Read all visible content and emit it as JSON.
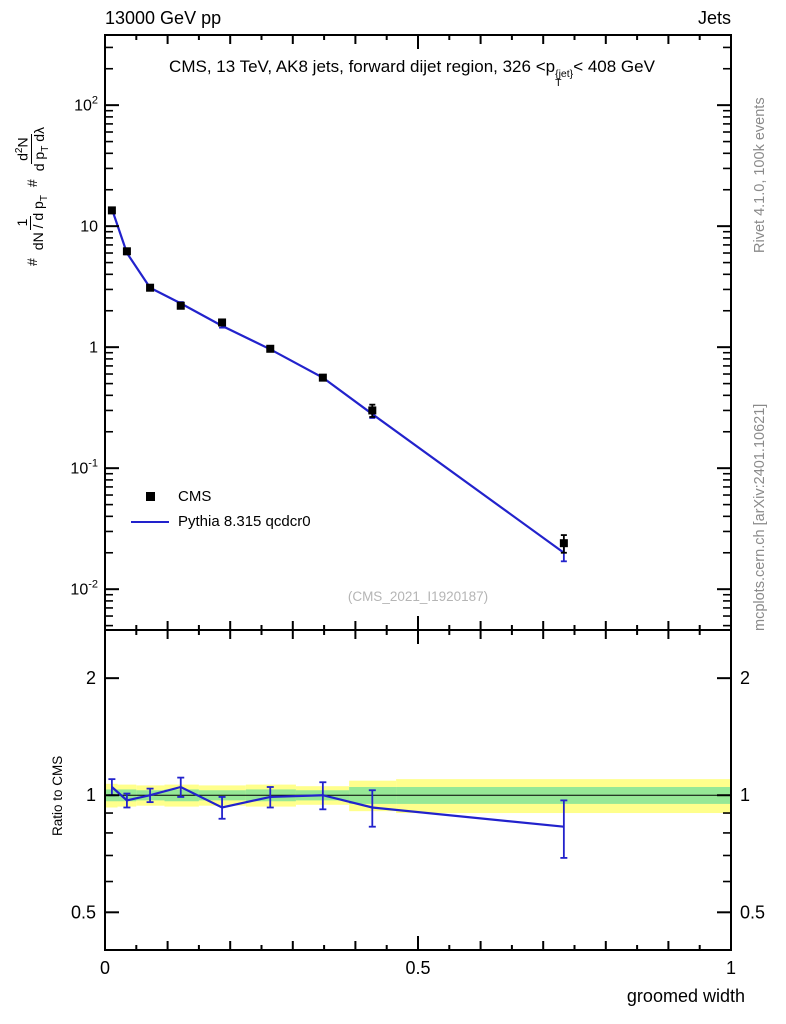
{
  "header": {
    "left": "13000 GeV pp",
    "right": "Jets"
  },
  "title": {
    "pre": "CMS, 13 TeV, AK8 jets, forward dijet region, 326 <p",
    "sup": "{jet}",
    "sub": "T",
    "post": "< 408 GeV"
  },
  "watermark": "(CMS_2021_I1920187)",
  "side_notes": {
    "rivet": "Rivet 4.1.0, 100k events",
    "mcplots": "mcplots.cern.ch [arXiv:2401.10621]"
  },
  "legend": [
    {
      "label": "CMS",
      "marker": "black-square"
    },
    {
      "label": "Pythia 8.315 qcdcr0",
      "marker": "blue-line"
    }
  ],
  "ylabel_parts": {
    "hash1": "#",
    "f1num": "1",
    "f1den_pre": "dN / d p",
    "f1den_sub": "T",
    "hash2": "#",
    "f2num_pre": "d",
    "f2num_sup": "2",
    "f2num_post": "N",
    "f2den_pre": "d p",
    "f2den_sub": "T",
    "f2den_post": " dλ"
  },
  "axes": {
    "y_ratio_label": "Ratio to CMS"
  },
  "chart_data": {
    "type": "line",
    "title": "CMS, 13 TeV, AK8 jets, forward dijet region, 326 < pT{jet} < 408 GeV",
    "xlabel": "groomed width",
    "ylabel": "# 1/(dN/dpT) d2N/(dpT dlambda)",
    "ratio_label": "Ratio to CMS",
    "legend_position": "middle-left",
    "grid": false,
    "xlim": [
      0,
      1
    ],
    "ylim_main": [
      0.0046,
      380
    ],
    "ylim_ratio": [
      0.4,
      2.66
    ],
    "x_scale": "linear",
    "y_scale_main": "log",
    "y_scale_ratio": "log",
    "x": [
      0.011,
      0.035,
      0.072,
      0.121,
      0.187,
      0.264,
      0.348,
      0.427,
      0.733
    ],
    "series": [
      {
        "name": "CMS",
        "type": "marker",
        "color": "#000000",
        "values": [
          13.5,
          6.2,
          3.1,
          2.2,
          1.6,
          0.97,
          0.56,
          0.3,
          0.024
        ],
        "errors": [
          0.5,
          0.25,
          0.12,
          0.08,
          0.07,
          0.04,
          0.025,
          0.035,
          0.004
        ]
      },
      {
        "name": "Pythia 8.315 qcdcr0",
        "type": "line",
        "color": "#2222cc",
        "values": [
          13.9,
          6.0,
          3.1,
          2.3,
          1.5,
          0.96,
          0.56,
          0.28,
          0.02
        ],
        "errors": [
          0.3,
          0.15,
          0.08,
          0.06,
          0.05,
          0.03,
          0.02,
          0.02,
          0.003
        ]
      }
    ],
    "ratio": {
      "values": [
        1.05,
        0.97,
        1.0,
        1.05,
        0.93,
        0.99,
        1.0,
        0.93,
        0.83
      ],
      "errors": [
        0.05,
        0.04,
        0.04,
        0.06,
        0.06,
        0.06,
        0.08,
        0.1,
        0.14
      ]
    },
    "bands": [
      {
        "x0": 0.0,
        "x1": 0.02,
        "outer_lo": 0.93,
        "outer_hi": 1.07,
        "inner_lo": 0.965,
        "inner_hi": 1.035
      },
      {
        "x0": 0.02,
        "x1": 0.05,
        "outer_lo": 0.935,
        "outer_hi": 1.065,
        "inner_lo": 0.965,
        "inner_hi": 1.035
      },
      {
        "x0": 0.05,
        "x1": 0.095,
        "outer_lo": 0.94,
        "outer_hi": 1.06,
        "inner_lo": 0.97,
        "inner_hi": 1.03
      },
      {
        "x0": 0.095,
        "x1": 0.15,
        "outer_lo": 0.935,
        "outer_hi": 1.065,
        "inner_lo": 0.965,
        "inner_hi": 1.035
      },
      {
        "x0": 0.15,
        "x1": 0.225,
        "outer_lo": 0.94,
        "outer_hi": 1.06,
        "inner_lo": 0.97,
        "inner_hi": 1.03
      },
      {
        "x0": 0.225,
        "x1": 0.305,
        "outer_lo": 0.935,
        "outer_hi": 1.065,
        "inner_lo": 0.965,
        "inner_hi": 1.035
      },
      {
        "x0": 0.305,
        "x1": 0.39,
        "outer_lo": 0.945,
        "outer_hi": 1.055,
        "inner_lo": 0.97,
        "inner_hi": 1.03
      },
      {
        "x0": 0.39,
        "x1": 0.465,
        "outer_lo": 0.91,
        "outer_hi": 1.09,
        "inner_lo": 0.95,
        "inner_hi": 1.05
      },
      {
        "x0": 0.465,
        "x1": 1.0,
        "outer_lo": 0.9,
        "outer_hi": 1.1,
        "inner_lo": 0.95,
        "inner_hi": 1.05
      }
    ],
    "band_colors": {
      "outer": "#ffff8c",
      "inner": "#96e896"
    },
    "ticks": {
      "x": [
        {
          "v": 0,
          "t": "0"
        },
        {
          "v": 0.5,
          "t": "0.5"
        },
        {
          "v": 1,
          "t": "1"
        }
      ],
      "y_main": [
        {
          "v": 100,
          "t": "10",
          "e": "2"
        },
        {
          "v": 10,
          "t": "10",
          "e": ""
        },
        {
          "v": 1,
          "t": "1",
          "e": ""
        },
        {
          "v": 0.1,
          "t": "10",
          "e": "-1"
        },
        {
          "v": 0.01,
          "t": "10",
          "e": "-2"
        }
      ],
      "y_ratio": [
        {
          "v": 2,
          "t": "2"
        },
        {
          "v": 1,
          "t": "1"
        },
        {
          "v": 0.5,
          "t": "0.5"
        }
      ]
    }
  }
}
